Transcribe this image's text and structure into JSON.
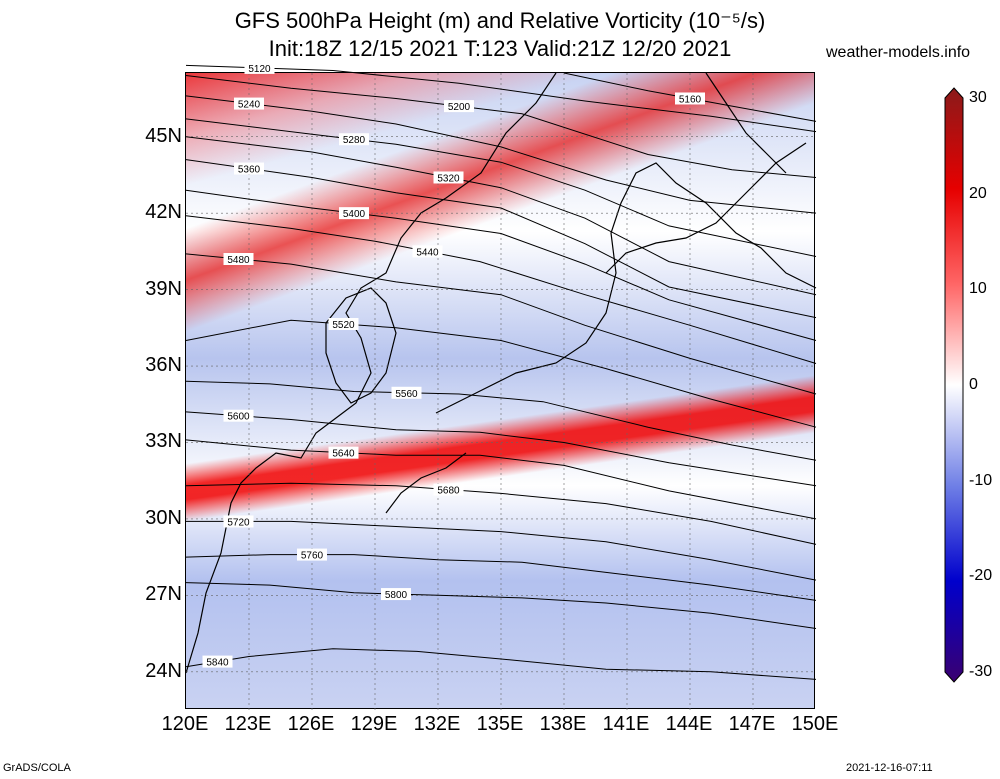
{
  "title_line1": "GFS 500hPa Height (m) and Relative Vorticity (10⁻⁵/s)",
  "title_line2": "Init:18Z 12/15 2021 T:123 Valid:21Z 12/20 2021",
  "site": "weather-models.info",
  "footer_left": "GrADS/COLA",
  "footer_right": "2021-12-16-07:11",
  "colors": {
    "positive": "#e60000",
    "negative": "#1a1acc",
    "zero": "#ffffff"
  },
  "map": {
    "lon_range": [
      120,
      150
    ],
    "lat_range": [
      22.5,
      47.5
    ],
    "lon_ticks": [
      "120E",
      "123E",
      "126E",
      "129E",
      "132E",
      "135E",
      "138E",
      "141E",
      "144E",
      "147E",
      "150E"
    ],
    "lat_ticks": [
      "24N",
      "27N",
      "30N",
      "33N",
      "36N",
      "39N",
      "42N",
      "45N"
    ],
    "contours": [
      {
        "v": 5120,
        "lbl": "5120",
        "pts": [
          [
            120,
            47.8
          ],
          [
            127,
            47.6
          ],
          [
            133,
            47.1
          ],
          [
            139,
            46.4
          ],
          [
            145,
            45.8
          ],
          [
            150,
            45.2
          ]
        ]
      },
      {
        "v": 5160,
        "lbl": "5160",
        "pts": [
          [
            138,
            47.5
          ],
          [
            142,
            46.8
          ],
          [
            146,
            46.2
          ],
          [
            150,
            45.6
          ]
        ]
      },
      {
        "v": 5200,
        "lbl": "5200",
        "pts": [
          [
            120,
            47.4
          ],
          [
            125,
            46.9
          ],
          [
            130,
            46.5
          ],
          [
            136,
            45.9
          ],
          [
            142,
            44.3
          ],
          [
            146,
            43.7
          ],
          [
            150,
            43.4
          ]
        ]
      },
      {
        "v": 5240,
        "lbl": "5240",
        "pts": [
          [
            120,
            46.6
          ],
          [
            126,
            46.0
          ],
          [
            130,
            45.5
          ],
          [
            135,
            44.6
          ],
          [
            140,
            43.3
          ],
          [
            144,
            42.5
          ],
          [
            150,
            42.0
          ]
        ]
      },
      {
        "v": 5280,
        "lbl": "5280",
        "pts": [
          [
            120,
            45.7
          ],
          [
            126,
            45.1
          ],
          [
            130,
            44.7
          ],
          [
            135,
            44.0
          ],
          [
            139,
            42.9
          ],
          [
            143,
            41.5
          ],
          [
            150,
            40.3
          ]
        ]
      },
      {
        "v": 5320,
        "lbl": "5320",
        "pts": [
          [
            120,
            45.0
          ],
          [
            126,
            44.4
          ],
          [
            130,
            43.8
          ],
          [
            135,
            43.0
          ],
          [
            139,
            41.8
          ],
          [
            143,
            40.1
          ],
          [
            150,
            38.8
          ]
        ]
      },
      {
        "v": 5360,
        "lbl": "5360",
        "pts": [
          [
            120,
            44.1
          ],
          [
            126,
            43.4
          ],
          [
            130,
            42.8
          ],
          [
            135,
            42.2
          ],
          [
            139,
            40.8
          ],
          [
            143,
            39.1
          ],
          [
            150,
            37.9
          ]
        ]
      },
      {
        "v": 5400,
        "lbl": "5400",
        "pts": [
          [
            120,
            42.9
          ],
          [
            126,
            42.2
          ],
          [
            130,
            41.8
          ],
          [
            135,
            41.2
          ],
          [
            139,
            40.0
          ],
          [
            143,
            38.6
          ],
          [
            150,
            37.0
          ]
        ]
      },
      {
        "v": 5440,
        "lbl": "5440",
        "pts": [
          [
            120,
            41.9
          ],
          [
            125,
            41.4
          ],
          [
            129,
            40.9
          ],
          [
            134,
            40.1
          ],
          [
            139,
            38.8
          ],
          [
            144,
            37.6
          ],
          [
            150,
            36.1
          ]
        ]
      },
      {
        "v": 5480,
        "lbl": "5480",
        "pts": [
          [
            120,
            40.4
          ],
          [
            125,
            40.0
          ],
          [
            130,
            39.3
          ],
          [
            135,
            38.8
          ],
          [
            139,
            37.6
          ],
          [
            144,
            36.3
          ],
          [
            150,
            34.9
          ]
        ]
      },
      {
        "v": 5520,
        "lbl": "5520",
        "pts": [
          [
            120,
            37.0
          ],
          [
            125,
            37.8
          ],
          [
            130,
            37.5
          ],
          [
            135,
            37.0
          ],
          [
            140,
            35.9
          ],
          [
            145,
            34.7
          ],
          [
            150,
            33.6
          ]
        ]
      },
      {
        "v": 5560,
        "lbl": "5560",
        "pts": [
          [
            120,
            35.4
          ],
          [
            124,
            35.3
          ],
          [
            128,
            35.0
          ],
          [
            133,
            34.9
          ],
          [
            137,
            34.6
          ],
          [
            142,
            33.6
          ],
          [
            146,
            32.9
          ],
          [
            150,
            32.3
          ]
        ]
      },
      {
        "v": 5600,
        "lbl": "5600",
        "pts": [
          [
            120,
            34.2
          ],
          [
            125,
            33.9
          ],
          [
            130,
            33.5
          ],
          [
            134,
            33.4
          ],
          [
            138,
            33.0
          ],
          [
            143,
            32.2
          ],
          [
            150,
            31.3
          ]
        ]
      },
      {
        "v": 5640,
        "lbl": "5640",
        "pts": [
          [
            120,
            33.1
          ],
          [
            125,
            32.7
          ],
          [
            130,
            32.5
          ],
          [
            134,
            32.5
          ],
          [
            138,
            32.1
          ],
          [
            143,
            31.1
          ],
          [
            150,
            30.0
          ]
        ]
      },
      {
        "v": 5680,
        "lbl": "5680",
        "pts": [
          [
            120,
            31.3
          ],
          [
            125,
            31.4
          ],
          [
            130,
            31.3
          ],
          [
            135,
            31.0
          ],
          [
            140,
            30.6
          ],
          [
            145,
            29.9
          ],
          [
            150,
            29.0
          ]
        ]
      },
      {
        "v": 5720,
        "lbl": "5720",
        "pts": [
          [
            120,
            29.9
          ],
          [
            125,
            29.9
          ],
          [
            130,
            29.7
          ],
          [
            135,
            29.5
          ],
          [
            140,
            29.1
          ],
          [
            145,
            28.4
          ],
          [
            150,
            27.6
          ]
        ]
      },
      {
        "v": 5760,
        "lbl": "5760",
        "pts": [
          [
            120,
            28.5
          ],
          [
            124,
            28.6
          ],
          [
            128,
            28.6
          ],
          [
            132,
            28.4
          ],
          [
            136,
            28.3
          ],
          [
            140,
            27.9
          ],
          [
            145,
            27.4
          ],
          [
            150,
            26.8
          ]
        ]
      },
      {
        "v": 5800,
        "lbl": "5800",
        "pts": [
          [
            120,
            27.5
          ],
          [
            124,
            27.4
          ],
          [
            128,
            27.1
          ],
          [
            132,
            27.0
          ],
          [
            136,
            26.9
          ],
          [
            140,
            26.7
          ],
          [
            145,
            26.3
          ],
          [
            150,
            25.7
          ]
        ]
      },
      {
        "v": 5840,
        "lbl": "5840",
        "pts": [
          [
            120,
            24.2
          ],
          [
            123,
            24.6
          ],
          [
            127,
            24.9
          ],
          [
            131,
            24.8
          ],
          [
            135,
            24.5
          ],
          [
            140,
            24.1
          ],
          [
            145,
            24.0
          ],
          [
            150,
            23.7
          ]
        ]
      }
    ]
  },
  "colorbar": {
    "ticks": [
      "30",
      "20",
      "10",
      "0",
      "-10",
      "-20",
      "-30"
    ],
    "values": [
      30,
      20,
      10,
      0,
      -10,
      -20,
      -30
    ]
  }
}
